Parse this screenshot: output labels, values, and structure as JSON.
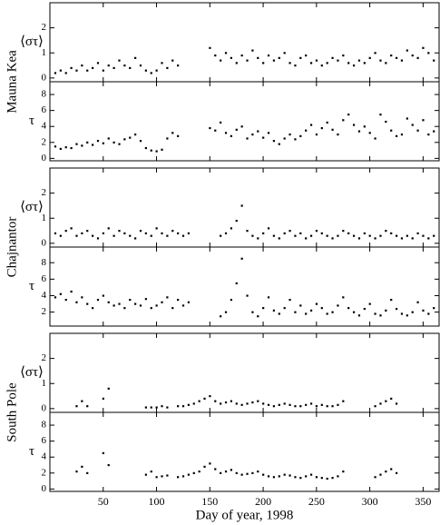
{
  "chart_data": [
    {
      "type": "scatter",
      "group_label": "Mauna Kea",
      "ylabel": "⟨στ⟩",
      "color": "#000000",
      "xlim": [
        0,
        365
      ],
      "xticks": [
        50,
        100,
        150,
        200,
        250,
        300,
        350
      ],
      "ylim": [
        -0.15,
        3.0
      ],
      "yticks": [
        0,
        1,
        2
      ],
      "x": [
        5,
        10,
        15,
        20,
        25,
        30,
        35,
        40,
        45,
        50,
        55,
        60,
        65,
        70,
        75,
        80,
        85,
        90,
        95,
        100,
        105,
        110,
        115,
        120,
        125,
        130,
        135,
        140,
        145,
        150,
        155,
        160,
        165,
        170,
        175,
        180,
        185,
        190,
        195,
        200,
        205,
        210,
        215,
        220,
        225,
        230,
        235,
        240,
        245,
        250,
        255,
        260,
        265,
        270,
        275,
        280,
        285,
        290,
        295,
        300,
        305,
        310,
        315,
        320,
        325,
        330,
        335,
        340,
        345,
        350,
        355,
        360
      ],
      "values": [
        0.2,
        0.3,
        0.2,
        0.4,
        0.3,
        0.5,
        0.3,
        0.4,
        0.6,
        0.3,
        0.5,
        0.4,
        0.7,
        0.5,
        0.4,
        0.8,
        0.5,
        0.3,
        0.2,
        0.3,
        0.6,
        0.4,
        0.7,
        0.5,
        null,
        null,
        null,
        null,
        null,
        1.2,
        0.9,
        0.7,
        1.0,
        0.8,
        0.6,
        0.9,
        0.7,
        1.1,
        0.8,
        0.6,
        0.9,
        0.7,
        0.8,
        1.0,
        0.6,
        0.5,
        0.8,
        0.9,
        0.6,
        0.7,
        0.5,
        0.6,
        0.8,
        0.7,
        0.9,
        0.6,
        0.5,
        0.7,
        0.6,
        0.8,
        1.0,
        0.7,
        0.6,
        0.9,
        0.8,
        0.7,
        1.1,
        0.9,
        0.8,
        1.2,
        1.0,
        0.7
      ]
    },
    {
      "type": "scatter",
      "ylabel": "τ",
      "color": "#000000",
      "xlim": [
        0,
        365
      ],
      "xticks": [
        50,
        100,
        150,
        200,
        250,
        300,
        350
      ],
      "ylim": [
        -0.3,
        9.6
      ],
      "yticks": [
        0,
        2,
        4,
        6,
        8
      ],
      "x": [
        5,
        10,
        15,
        20,
        25,
        30,
        35,
        40,
        45,
        50,
        55,
        60,
        65,
        70,
        75,
        80,
        85,
        90,
        95,
        100,
        105,
        110,
        115,
        120,
        125,
        130,
        135,
        140,
        145,
        150,
        155,
        160,
        165,
        170,
        175,
        180,
        185,
        190,
        195,
        200,
        205,
        210,
        215,
        220,
        225,
        230,
        235,
        240,
        245,
        250,
        255,
        260,
        265,
        270,
        275,
        280,
        285,
        290,
        295,
        300,
        305,
        310,
        315,
        320,
        325,
        330,
        335,
        340,
        345,
        350,
        355,
        360
      ],
      "values": [
        1.5,
        1.2,
        1.4,
        1.3,
        1.8,
        1.6,
        2.0,
        1.7,
        2.2,
        1.9,
        2.5,
        2.0,
        1.8,
        2.4,
        2.6,
        3.0,
        2.2,
        1.3,
        1.0,
        0.9,
        1.1,
        2.5,
        3.2,
        2.8,
        null,
        null,
        null,
        null,
        null,
        3.8,
        3.5,
        4.5,
        3.2,
        2.8,
        3.6,
        4.0,
        2.5,
        3.0,
        3.4,
        2.6,
        3.2,
        2.2,
        1.8,
        2.5,
        3.0,
        2.4,
        2.8,
        3.5,
        4.2,
        3.0,
        3.8,
        4.5,
        3.6,
        3.0,
        4.8,
        5.5,
        4.2,
        3.4,
        4.0,
        3.2,
        2.5,
        5.5,
        4.6,
        3.5,
        2.8,
        3.0,
        5.0,
        4.2,
        3.5,
        4.8,
        3.0,
        3.4
      ]
    },
    {
      "type": "scatter",
      "group_label": "Chajnantor",
      "ylabel": "⟨στ⟩",
      "color": "#000000",
      "xlim": [
        0,
        365
      ],
      "xticks": [
        50,
        100,
        150,
        200,
        250,
        300,
        350
      ],
      "ylim": [
        -0.15,
        3.0
      ],
      "yticks": [
        0,
        1,
        2
      ],
      "x": [
        5,
        10,
        15,
        20,
        25,
        30,
        35,
        40,
        45,
        50,
        55,
        60,
        65,
        70,
        75,
        80,
        85,
        90,
        95,
        100,
        105,
        110,
        115,
        120,
        125,
        130,
        135,
        140,
        145,
        150,
        155,
        160,
        165,
        170,
        175,
        180,
        185,
        190,
        195,
        200,
        205,
        210,
        215,
        220,
        225,
        230,
        235,
        240,
        245,
        250,
        255,
        260,
        265,
        270,
        275,
        280,
        285,
        290,
        295,
        300,
        305,
        310,
        315,
        320,
        325,
        330,
        335,
        340,
        345,
        350,
        355,
        360
      ],
      "values": [
        0.4,
        0.3,
        0.5,
        0.6,
        0.3,
        0.4,
        0.5,
        0.3,
        0.2,
        0.4,
        0.6,
        0.3,
        0.5,
        0.4,
        0.3,
        0.2,
        0.5,
        0.4,
        0.3,
        0.6,
        0.4,
        0.3,
        0.5,
        0.4,
        0.3,
        0.4,
        null,
        null,
        null,
        null,
        null,
        0.3,
        0.4,
        0.6,
        0.9,
        1.5,
        0.5,
        0.3,
        0.2,
        0.4,
        0.6,
        0.3,
        0.2,
        0.4,
        0.5,
        0.3,
        0.4,
        0.2,
        0.3,
        0.5,
        0.4,
        0.3,
        0.2,
        0.3,
        0.5,
        0.4,
        0.3,
        0.2,
        0.4,
        0.3,
        0.2,
        0.3,
        0.5,
        0.4,
        0.3,
        0.2,
        0.3,
        0.2,
        0.4,
        0.3,
        0.2,
        0.3
      ]
    },
    {
      "type": "scatter",
      "ylabel": "τ",
      "color": "#000000",
      "xlim": [
        0,
        365
      ],
      "xticks": [
        50,
        100,
        150,
        200,
        250,
        300,
        350
      ],
      "ylim": [
        0.3,
        9.9
      ],
      "yticks": [
        2,
        4,
        6,
        8
      ],
      "x": [
        5,
        10,
        15,
        20,
        25,
        30,
        35,
        40,
        45,
        50,
        55,
        60,
        65,
        70,
        75,
        80,
        85,
        90,
        95,
        100,
        105,
        110,
        115,
        120,
        125,
        130,
        135,
        140,
        145,
        150,
        155,
        160,
        165,
        170,
        175,
        180,
        185,
        190,
        195,
        200,
        205,
        210,
        215,
        220,
        225,
        230,
        235,
        240,
        245,
        250,
        255,
        260,
        265,
        270,
        275,
        280,
        285,
        290,
        295,
        300,
        305,
        310,
        315,
        320,
        325,
        330,
        335,
        340,
        345,
        350,
        355,
        360
      ],
      "values": [
        3.8,
        4.2,
        3.5,
        4.5,
        3.2,
        3.8,
        3.0,
        2.5,
        3.5,
        4.0,
        3.2,
        2.8,
        3.0,
        2.5,
        3.5,
        3.0,
        2.8,
        3.6,
        2.5,
        2.8,
        3.2,
        3.8,
        2.5,
        3.5,
        2.8,
        3.2,
        null,
        null,
        null,
        null,
        null,
        1.5,
        2.0,
        3.5,
        5.5,
        8.5,
        4.0,
        2.0,
        1.5,
        2.5,
        3.8,
        2.2,
        1.8,
        2.5,
        3.5,
        2.0,
        2.8,
        1.8,
        2.2,
        3.0,
        2.5,
        1.8,
        2.0,
        2.8,
        3.8,
        2.5,
        2.0,
        1.6,
        2.4,
        3.0,
        1.8,
        1.6,
        2.2,
        3.5,
        2.4,
        1.8,
        1.6,
        2.0,
        3.2,
        2.2,
        1.8,
        2.5
      ]
    },
    {
      "type": "scatter",
      "group_label": "South Pole",
      "ylabel": "⟨στ⟩",
      "color": "#000000",
      "xlim": [
        0,
        365
      ],
      "xticks": [
        50,
        100,
        150,
        200,
        250,
        300,
        350
      ],
      "ylim": [
        -0.15,
        3.0
      ],
      "yticks": [
        0,
        1,
        2
      ],
      "x": [
        5,
        10,
        15,
        20,
        25,
        30,
        35,
        40,
        45,
        50,
        55,
        60,
        65,
        70,
        75,
        80,
        85,
        90,
        95,
        100,
        105,
        110,
        115,
        120,
        125,
        130,
        135,
        140,
        145,
        150,
        155,
        160,
        165,
        170,
        175,
        180,
        185,
        190,
        195,
        200,
        205,
        210,
        215,
        220,
        225,
        230,
        235,
        240,
        245,
        250,
        255,
        260,
        265,
        270,
        275,
        280,
        285,
        290,
        295,
        300,
        305,
        310,
        315,
        320,
        325,
        330,
        335,
        340,
        345,
        350,
        355,
        360
      ],
      "values": [
        null,
        null,
        null,
        null,
        0.1,
        0.3,
        0.1,
        null,
        null,
        0.4,
        0.8,
        null,
        null,
        null,
        null,
        null,
        null,
        0.05,
        0.05,
        0.05,
        0.1,
        0.05,
        null,
        0.1,
        0.1,
        0.15,
        0.2,
        0.3,
        0.4,
        0.5,
        0.3,
        0.2,
        0.25,
        0.3,
        0.2,
        0.15,
        0.2,
        0.25,
        0.3,
        0.2,
        0.15,
        0.1,
        0.15,
        0.2,
        0.15,
        0.1,
        0.1,
        0.15,
        0.2,
        0.1,
        0.15,
        0.1,
        0.1,
        0.15,
        0.3,
        null,
        null,
        null,
        null,
        null,
        0.1,
        0.2,
        0.3,
        0.4,
        0.2,
        null,
        null,
        null,
        null,
        null,
        null,
        null
      ]
    },
    {
      "type": "scatter",
      "ylabel": "τ",
      "color": "#000000",
      "xlabel": "Day of year, 1998",
      "xlim": [
        0,
        365
      ],
      "xticks": [
        50,
        100,
        150,
        200,
        250,
        300,
        350
      ],
      "ylim": [
        -0.3,
        9.6
      ],
      "yticks": [
        0,
        2,
        4,
        6,
        8
      ],
      "x": [
        5,
        10,
        15,
        20,
        25,
        30,
        35,
        40,
        45,
        50,
        55,
        60,
        65,
        70,
        75,
        80,
        85,
        90,
        95,
        100,
        105,
        110,
        115,
        120,
        125,
        130,
        135,
        140,
        145,
        150,
        155,
        160,
        165,
        170,
        175,
        180,
        185,
        190,
        195,
        200,
        205,
        210,
        215,
        220,
        225,
        230,
        235,
        240,
        245,
        250,
        255,
        260,
        265,
        270,
        275,
        280,
        285,
        290,
        295,
        300,
        305,
        310,
        315,
        320,
        325,
        330,
        335,
        340,
        345,
        350,
        355,
        360
      ],
      "values": [
        null,
        null,
        null,
        null,
        2.2,
        2.8,
        2.0,
        null,
        null,
        4.5,
        3.0,
        null,
        null,
        null,
        null,
        null,
        null,
        1.8,
        2.2,
        1.5,
        1.6,
        1.7,
        null,
        1.5,
        1.6,
        1.8,
        2.0,
        2.2,
        2.8,
        3.2,
        2.5,
        2.0,
        2.2,
        2.4,
        2.0,
        1.8,
        1.9,
        2.0,
        2.2,
        1.8,
        1.6,
        1.5,
        1.6,
        1.8,
        1.7,
        1.5,
        1.4,
        1.6,
        1.8,
        1.5,
        1.4,
        1.3,
        1.4,
        1.6,
        2.2,
        null,
        null,
        null,
        null,
        null,
        1.5,
        1.8,
        2.2,
        2.5,
        2.0,
        null,
        null,
        null,
        null,
        null,
        null,
        null
      ]
    }
  ]
}
